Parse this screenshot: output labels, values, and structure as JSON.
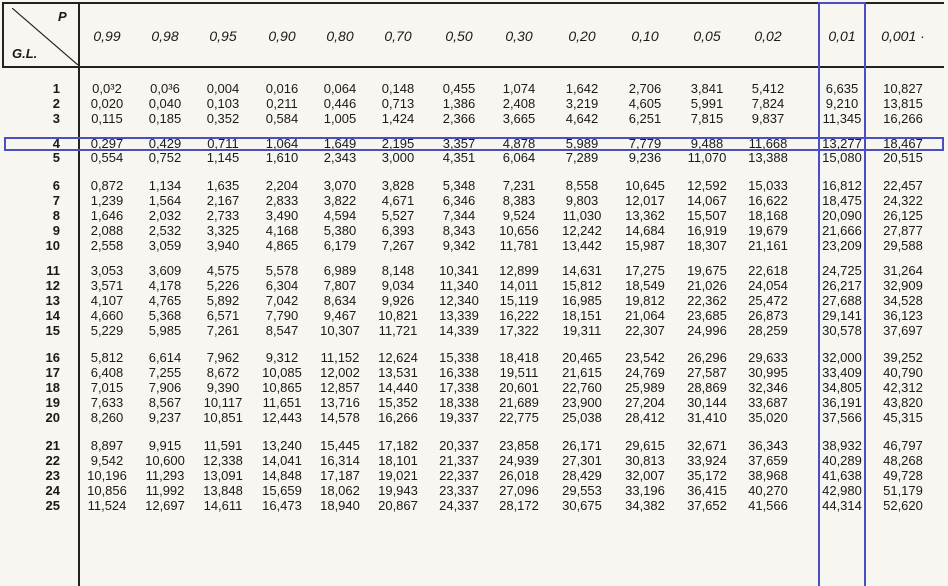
{
  "header": {
    "p_label": "P",
    "gl_label": "G.L."
  },
  "columns": [
    "0,99",
    "0,98",
    "0,95",
    "0,90",
    "0,80",
    "0,70",
    "0,50",
    "0,30",
    "0,20",
    "0,10",
    "0,05",
    "0,02",
    "0,01",
    "0,001 ·"
  ],
  "rows": [
    {
      "gl": "1",
      "values": [
        "0,0³2",
        "0,0³6",
        "0,004",
        "0,016",
        "0,064",
        "0,148",
        "0,455",
        "1,074",
        "1,642",
        "2,706",
        "3,841",
        "5,412",
        "6,635",
        "10,827"
      ]
    },
    {
      "gl": "2",
      "values": [
        "0,020",
        "0,040",
        "0,103",
        "0,211",
        "0,446",
        "0,713",
        "1,386",
        "2,408",
        "3,219",
        "4,605",
        "5,991",
        "7,824",
        "9,210",
        "13,815"
      ]
    },
    {
      "gl": "3",
      "values": [
        "0,115",
        "0,185",
        "0,352",
        "0,584",
        "1,005",
        "1,424",
        "2,366",
        "3,665",
        "4,642",
        "6,251",
        "7,815",
        "9,837",
        "11,345",
        "16,266"
      ]
    },
    {
      "gl": "4",
      "values": [
        "0,297",
        "0,429",
        "0,711",
        "1,064",
        "1,649",
        "2,195",
        "3,357",
        "4,878",
        "5,989",
        "7,779",
        "9,488",
        "11,668",
        "13,277",
        "18,467"
      ]
    },
    {
      "gl": "5",
      "values": [
        "0,554",
        "0,752",
        "1,145",
        "1,610",
        "2,343",
        "3,000",
        "4,351",
        "6,064",
        "7,289",
        "9,236",
        "11,070",
        "13,388",
        "15,080",
        "20,515"
      ]
    },
    {
      "gl": "6",
      "values": [
        "0,872",
        "1,134",
        "1,635",
        "2,204",
        "3,070",
        "3,828",
        "5,348",
        "7,231",
        "8,558",
        "10,645",
        "12,592",
        "15,033",
        "16,812",
        "22,457"
      ]
    },
    {
      "gl": "7",
      "values": [
        "1,239",
        "1,564",
        "2,167",
        "2,833",
        "3,822",
        "4,671",
        "6,346",
        "8,383",
        "9,803",
        "12,017",
        "14,067",
        "16,622",
        "18,475",
        "24,322"
      ]
    },
    {
      "gl": "8",
      "values": [
        "1,646",
        "2,032",
        "2,733",
        "3,490",
        "4,594",
        "5,527",
        "7,344",
        "9,524",
        "11,030",
        "13,362",
        "15,507",
        "18,168",
        "20,090",
        "26,125"
      ]
    },
    {
      "gl": "9",
      "values": [
        "2,088",
        "2,532",
        "3,325",
        "4,168",
        "5,380",
        "6,393",
        "8,343",
        "10,656",
        "12,242",
        "14,684",
        "16,919",
        "19,679",
        "21,666",
        "27,877"
      ]
    },
    {
      "gl": "10",
      "values": [
        "2,558",
        "3,059",
        "3,940",
        "4,865",
        "6,179",
        "7,267",
        "9,342",
        "11,781",
        "13,442",
        "15,987",
        "18,307",
        "21,161",
        "23,209",
        "29,588"
      ]
    },
    {
      "gl": "11",
      "values": [
        "3,053",
        "3,609",
        "4,575",
        "5,578",
        "6,989",
        "8,148",
        "10,341",
        "12,899",
        "14,631",
        "17,275",
        "19,675",
        "22,618",
        "24,725",
        "31,264"
      ]
    },
    {
      "gl": "12",
      "values": [
        "3,571",
        "4,178",
        "5,226",
        "6,304",
        "7,807",
        "9,034",
        "11,340",
        "14,011",
        "15,812",
        "18,549",
        "21,026",
        "24,054",
        "26,217",
        "32,909"
      ]
    },
    {
      "gl": "13",
      "values": [
        "4,107",
        "4,765",
        "5,892",
        "7,042",
        "8,634",
        "9,926",
        "12,340",
        "15,119",
        "16,985",
        "19,812",
        "22,362",
        "25,472",
        "27,688",
        "34,528"
      ]
    },
    {
      "gl": "14",
      "values": [
        "4,660",
        "5,368",
        "6,571",
        "7,790",
        "9,467",
        "10,821",
        "13,339",
        "16,222",
        "18,151",
        "21,064",
        "23,685",
        "26,873",
        "29,141",
        "36,123"
      ]
    },
    {
      "gl": "15",
      "values": [
        "5,229",
        "5,985",
        "7,261",
        "8,547",
        "10,307",
        "11,721",
        "14,339",
        "17,322",
        "19,311",
        "22,307",
        "24,996",
        "28,259",
        "30,578",
        "37,697"
      ]
    },
    {
      "gl": "16",
      "values": [
        "5,812",
        "6,614",
        "7,962",
        "9,312",
        "11,152",
        "12,624",
        "15,338",
        "18,418",
        "20,465",
        "23,542",
        "26,296",
        "29,633",
        "32,000",
        "39,252"
      ]
    },
    {
      "gl": "17",
      "values": [
        "6,408",
        "7,255",
        "8,672",
        "10,085",
        "12,002",
        "13,531",
        "16,338",
        "19,511",
        "21,615",
        "24,769",
        "27,587",
        "30,995",
        "33,409",
        "40,790"
      ]
    },
    {
      "gl": "18",
      "values": [
        "7,015",
        "7,906",
        "9,390",
        "10,865",
        "12,857",
        "14,440",
        "17,338",
        "20,601",
        "22,760",
        "25,989",
        "28,869",
        "32,346",
        "34,805",
        "42,312"
      ]
    },
    {
      "gl": "19",
      "values": [
        "7,633",
        "8,567",
        "10,117",
        "11,651",
        "13,716",
        "15,352",
        "18,338",
        "21,689",
        "23,900",
        "27,204",
        "30,144",
        "33,687",
        "36,191",
        "43,820"
      ]
    },
    {
      "gl": "20",
      "values": [
        "8,260",
        "9,237",
        "10,851",
        "12,443",
        "14,578",
        "16,266",
        "19,337",
        "22,775",
        "25,038",
        "28,412",
        "31,410",
        "35,020",
        "37,566",
        "45,315"
      ]
    },
    {
      "gl": "21",
      "values": [
        "8,897",
        "9,915",
        "11,591",
        "13,240",
        "15,445",
        "17,182",
        "20,337",
        "23,858",
        "26,171",
        "29,615",
        "32,671",
        "36,343",
        "38,932",
        "46,797"
      ]
    },
    {
      "gl": "22",
      "values": [
        "9,542",
        "10,600",
        "12,338",
        "14,041",
        "16,314",
        "18,101",
        "21,337",
        "24,939",
        "27,301",
        "30,813",
        "33,924",
        "37,659",
        "40,289",
        "48,268"
      ]
    },
    {
      "gl": "23",
      "values": [
        "10,196",
        "11,293",
        "13,091",
        "14,848",
        "17,187",
        "19,021",
        "22,337",
        "26,018",
        "28,429",
        "32,007",
        "35,172",
        "38,968",
        "41,638",
        "49,728"
      ]
    },
    {
      "gl": "24",
      "values": [
        "10,856",
        "11,992",
        "13,848",
        "15,659",
        "18,062",
        "19,943",
        "23,337",
        "27,096",
        "29,553",
        "33,196",
        "36,415",
        "40,270",
        "42,980",
        "51,179"
      ]
    },
    {
      "gl": "25",
      "values": [
        "11,524",
        "12,697",
        "14,611",
        "16,473",
        "18,940",
        "20,867",
        "24,337",
        "28,172",
        "30,675",
        "34,382",
        "37,652",
        "41,566",
        "44,314",
        "52,620"
      ]
    }
  ]
}
